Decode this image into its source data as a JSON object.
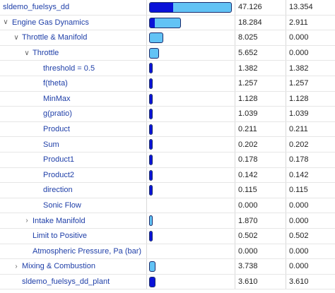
{
  "colors": {
    "bar_total": "#62c3f5",
    "bar_self": "#0a12d8",
    "bar_border": "#1a2a6b",
    "label": "#1f3fa8"
  },
  "max_total": 47.126,
  "rows": [
    {
      "name": "sldemo_fuelsys_dd",
      "total": "47.126",
      "self": "13.354",
      "level": 0,
      "toggle": "",
      "t": 47.126,
      "s": 13.354
    },
    {
      "name": "Engine Gas Dynamics",
      "total": "18.284",
      "self": "2.911",
      "level": 0,
      "toggle": "expanded",
      "t": 18.284,
      "s": 2.911
    },
    {
      "name": "Throttle & Manifold",
      "total": "8.025",
      "self": "0.000",
      "level": 1,
      "toggle": "expanded",
      "t": 8.025,
      "s": 0
    },
    {
      "name": "Throttle",
      "total": "5.652",
      "self": "0.000",
      "level": 2,
      "toggle": "expanded",
      "t": 5.652,
      "s": 0
    },
    {
      "name": "threshold = 0.5",
      "total": "1.382",
      "self": "1.382",
      "level": 3,
      "toggle": "",
      "t": 1.382,
      "s": 1.382
    },
    {
      "name": "f(theta)",
      "total": "1.257",
      "self": "1.257",
      "level": 3,
      "toggle": "",
      "t": 1.257,
      "s": 1.257
    },
    {
      "name": "MinMax",
      "total": "1.128",
      "self": "1.128",
      "level": 3,
      "toggle": "",
      "t": 1.128,
      "s": 1.128
    },
    {
      "name": "g(pratio)",
      "total": "1.039",
      "self": "1.039",
      "level": 3,
      "toggle": "",
      "t": 1.039,
      "s": 1.039
    },
    {
      "name": "Product",
      "total": "0.211",
      "self": "0.211",
      "level": 3,
      "toggle": "",
      "t": 0.211,
      "s": 0.211
    },
    {
      "name": "Sum",
      "total": "0.202",
      "self": "0.202",
      "level": 3,
      "toggle": "",
      "t": 0.202,
      "s": 0.202
    },
    {
      "name": "Product1",
      "total": "0.178",
      "self": "0.178",
      "level": 3,
      "toggle": "",
      "t": 0.178,
      "s": 0.178
    },
    {
      "name": "Product2",
      "total": "0.142",
      "self": "0.142",
      "level": 3,
      "toggle": "",
      "t": 0.142,
      "s": 0.142
    },
    {
      "name": "direction",
      "total": "0.115",
      "self": "0.115",
      "level": 3,
      "toggle": "",
      "t": 0.115,
      "s": 0.115
    },
    {
      "name": "Sonic Flow",
      "total": "0.000",
      "self": "0.000",
      "level": 3,
      "toggle": "",
      "t": 0,
      "s": 0
    },
    {
      "name": "Intake Manifold",
      "total": "1.870",
      "self": "0.000",
      "level": 2,
      "toggle": "collapsed",
      "t": 1.87,
      "s": 0
    },
    {
      "name": "Limit to Positive",
      "total": "0.502",
      "self": "0.502",
      "level": 2,
      "toggle": "",
      "t": 0.502,
      "s": 0.502
    },
    {
      "name": "Atmospheric Pressure, Pa (bar)",
      "total": "0.000",
      "self": "0.000",
      "level": 2,
      "toggle": "",
      "t": 0,
      "s": 0
    },
    {
      "name": "Mixing & Combustion",
      "total": "3.738",
      "self": "0.000",
      "level": 1,
      "toggle": "collapsed",
      "t": 3.738,
      "s": 0
    },
    {
      "name": "sldemo_fuelsys_dd_plant",
      "total": "3.610",
      "self": "3.610",
      "level": 1,
      "toggle": "",
      "t": 3.61,
      "s": 3.61
    }
  ]
}
